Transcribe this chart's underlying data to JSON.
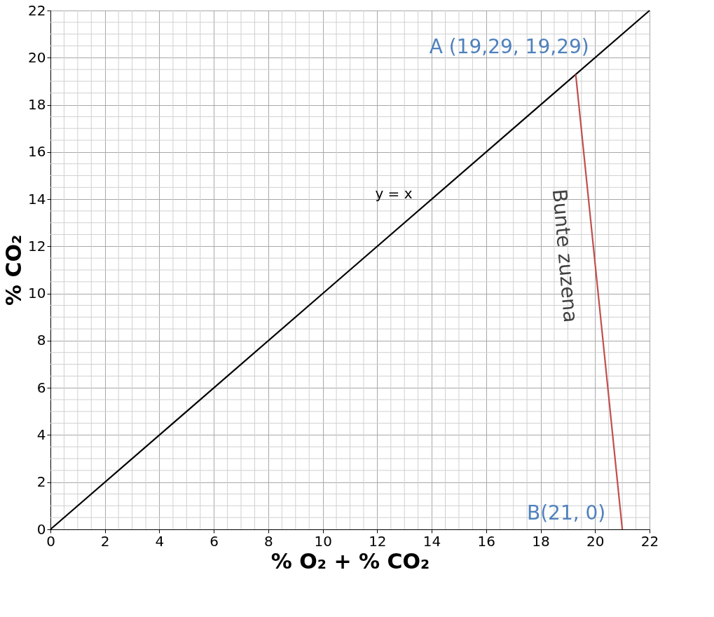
{
  "chart_data": {
    "type": "line",
    "xlabel": "% O₂ + % CO₂",
    "ylabel": "% CO₂",
    "series": [
      {
        "color": "#000000",
        "x": [
          0,
          22
        ],
        "values": [
          0,
          22
        ]
      },
      {
        "color": "#c0504d",
        "x": [
          19.29,
          21
        ],
        "values": [
          19.29,
          0
        ]
      }
    ],
    "xlim": [
      0,
      22
    ],
    "ylim": [
      0,
      22
    ],
    "xticks": [
      0,
      {
        "value": 0.5,
        "label": null
      },
      {
        "value": 1,
        "label": null
      },
      {
        "value": 1.5,
        "label": null
      },
      2,
      {
        "value": 2.5,
        "label": null
      },
      {
        "value": 3,
        "label": null
      },
      {
        "value": 3.5,
        "label": null
      },
      4,
      {
        "value": 4.5,
        "label": null
      },
      {
        "value": 5,
        "label": null
      },
      {
        "value": 5.5,
        "label": null
      },
      6,
      {
        "value": 6.5,
        "label": null
      },
      {
        "value": 7,
        "label": null
      },
      {
        "value": 7.5,
        "label": null
      },
      8,
      {
        "value": 8.5,
        "label": null
      },
      {
        "value": 9,
        "label": null
      },
      {
        "value": 9.5,
        "label": null
      },
      10,
      {
        "value": 10.5,
        "label": null
      },
      {
        "value": 11,
        "label": null
      },
      {
        "value": 11.5,
        "label": null
      },
      12,
      {
        "value": 12.5,
        "label": null
      },
      {
        "value": 13,
        "label": null
      },
      {
        "value": 13.5,
        "label": null
      },
      14,
      {
        "value": 14.5,
        "label": null
      },
      {
        "value": 15,
        "label": null
      },
      {
        "value": 15.5,
        "label": null
      },
      16,
      {
        "value": 16.5,
        "label": null
      },
      {
        "value": 17,
        "label": null
      },
      {
        "value": 17.5,
        "label": null
      },
      18,
      {
        "value": 18.5,
        "label": null
      },
      {
        "value": 19,
        "label": null
      },
      {
        "value": 19.5,
        "label": null
      },
      20,
      {
        "value": 20.5,
        "label": null
      },
      {
        "value": 21,
        "label": null
      },
      {
        "value": 21.5,
        "label": null
      },
      22
    ],
    "yticks": [
      0,
      {
        "value": 0.5,
        "label": null
      },
      {
        "value": 1,
        "label": null
      },
      {
        "value": 1.5,
        "label": null
      },
      2,
      {
        "value": 2.5,
        "label": null
      },
      {
        "value": 3,
        "label": null
      },
      {
        "value": 3.5,
        "label": null
      },
      4,
      {
        "value": 4.5,
        "label": null
      },
      {
        "value": 5,
        "label": null
      },
      {
        "value": 5.5,
        "label": null
      },
      6,
      {
        "value": 6.5,
        "label": null
      },
      {
        "value": 7,
        "label": null
      },
      {
        "value": 7.5,
        "label": null
      },
      8,
      {
        "value": 8.5,
        "label": null
      },
      {
        "value": 9,
        "label": null
      },
      {
        "value": 9.5,
        "label": null
      },
      10,
      {
        "value": 10.5,
        "label": null
      },
      {
        "value": 11,
        "label": null
      },
      {
        "value": 11.5,
        "label": null
      },
      12,
      {
        "value": 12.5,
        "label": null
      },
      {
        "value": 13,
        "label": null
      },
      {
        "value": 13.5,
        "label": null
      },
      14,
      {
        "value": 14.5,
        "label": null
      },
      {
        "value": 15,
        "label": null
      },
      {
        "value": 15.5,
        "label": null
      },
      16,
      {
        "value": 16.5,
        "label": null
      },
      {
        "value": 17,
        "label": null
      },
      {
        "value": 17.5,
        "label": null
      },
      18,
      {
        "value": 18.5,
        "label": null
      },
      {
        "value": 19,
        "label": null
      },
      {
        "value": 19.5,
        "label": null
      },
      20,
      {
        "value": 20.5,
        "label": null
      },
      {
        "value": 21,
        "label": null
      },
      {
        "value": 21.5,
        "label": null
      },
      22
    ],
    "grid": true,
    "marker": "none",
    "line_style": "solid",
    "annotations": [
      "y = x",
      {
        "text": "A (19,29, 19,29)",
        "x": 19.29,
        "y": 19.29
      },
      {
        "text": "B(21, 0)",
        "x": 21,
        "y": 0
      },
      "Bunte zuzena"
    ]
  }
}
